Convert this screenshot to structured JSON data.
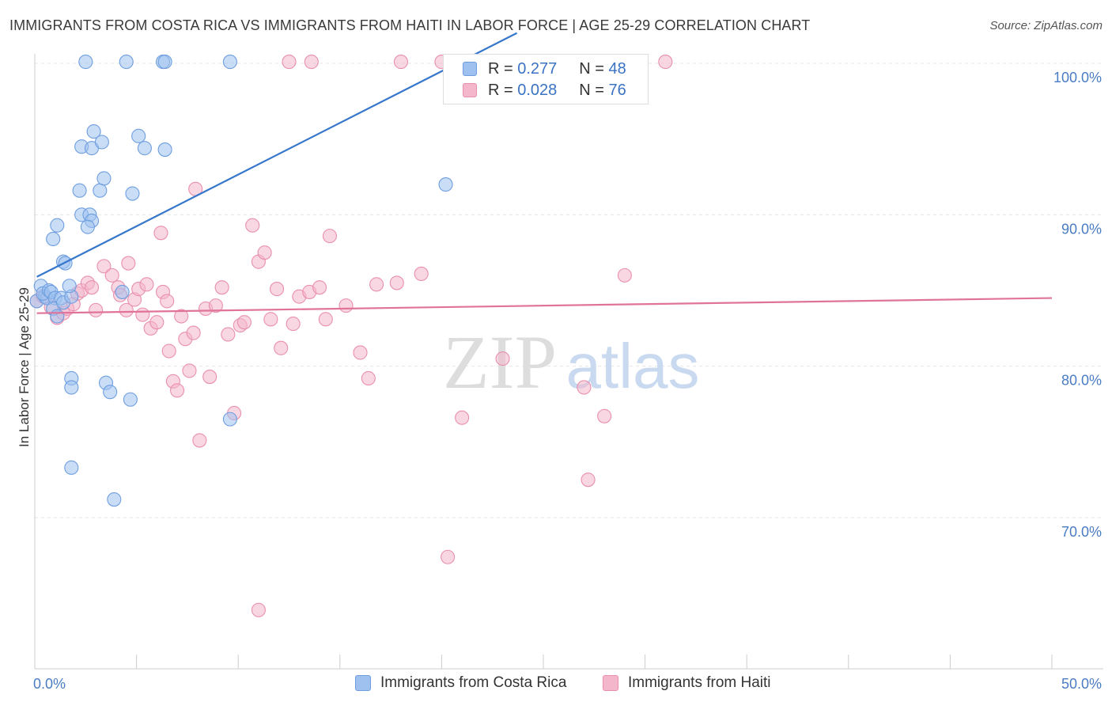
{
  "title": "IMMIGRANTS FROM COSTA RICA VS IMMIGRANTS FROM HAITI IN LABOR FORCE | AGE 25-29 CORRELATION CHART",
  "source": "Source: ZipAtlas.com",
  "watermark": {
    "zip": "ZIP",
    "atlas": "atlas"
  },
  "legend": {
    "r_label": "R =",
    "n_label": "N =",
    "rows": [
      {
        "r": "0.277",
        "n": "48",
        "color": "#9ec1ef"
      },
      {
        "r": "0.028",
        "n": "76",
        "color": "#f4b6cb"
      }
    ]
  },
  "colors": {
    "blue_fill": "#9ec1ef",
    "blue_stroke": "#6e9ee0",
    "blue_line": "#3677cc",
    "pink_fill": "#f4b6cb",
    "pink_stroke": "#e98fae",
    "pink_line": "#e0739a",
    "tick_label": "#4a7cc4",
    "grid": "#e6e6e6"
  },
  "chart_data": {
    "type": "scatter",
    "title": "IMMIGRANTS FROM COSTA RICA VS IMMIGRANTS FROM HAITI IN LABOR FORCE | AGE 25-29 CORRELATION CHART",
    "xlabel": "",
    "ylabel": "In Labor Force | Age 25-29",
    "xlim": [
      0,
      50
    ],
    "ylim": [
      60,
      102
    ],
    "x_tick_labels": [
      "0.0%",
      "50.0%"
    ],
    "y_ticks": [
      70,
      80,
      90,
      100
    ],
    "y_tick_labels": [
      "70.0%",
      "80.0%",
      "90.0%",
      "100.0%"
    ],
    "grid": true,
    "legend_position": "top-center",
    "series": [
      {
        "name": "Immigrants from Costa Rica",
        "color": "#9ec1ef",
        "trend": {
          "x": [
            0.1,
            23.7
          ],
          "y": [
            85.9,
            102.0
          ]
        },
        "points": [
          [
            0.1,
            84.3
          ],
          [
            0.3,
            85.3
          ],
          [
            0.5,
            84.6
          ],
          [
            0.6,
            84.5
          ],
          [
            0.4,
            84.8
          ],
          [
            0.7,
            85.0
          ],
          [
            0.8,
            84.9
          ],
          [
            1.0,
            84.5
          ],
          [
            0.9,
            83.8
          ],
          [
            1.1,
            83.3
          ],
          [
            1.3,
            84.5
          ],
          [
            1.4,
            84.2
          ],
          [
            1.8,
            84.6
          ],
          [
            1.7,
            85.3
          ],
          [
            1.4,
            86.9
          ],
          [
            1.5,
            86.8
          ],
          [
            0.9,
            88.4
          ],
          [
            1.1,
            89.3
          ],
          [
            2.3,
            90.0
          ],
          [
            2.7,
            90.0
          ],
          [
            2.8,
            89.6
          ],
          [
            2.6,
            89.2
          ],
          [
            2.2,
            91.6
          ],
          [
            3.2,
            91.6
          ],
          [
            3.4,
            92.4
          ],
          [
            2.3,
            94.5
          ],
          [
            2.8,
            94.4
          ],
          [
            3.3,
            94.8
          ],
          [
            2.9,
            95.5
          ],
          [
            4.8,
            91.4
          ],
          [
            5.1,
            95.2
          ],
          [
            5.4,
            94.4
          ],
          [
            6.4,
            94.3
          ],
          [
            2.5,
            100.1
          ],
          [
            4.5,
            100.1
          ],
          [
            6.3,
            100.1
          ],
          [
            6.4,
            100.1
          ],
          [
            9.6,
            100.1
          ],
          [
            20.2,
            92.0
          ],
          [
            1.8,
            79.2
          ],
          [
            1.8,
            78.6
          ],
          [
            3.5,
            78.9
          ],
          [
            3.7,
            78.3
          ],
          [
            4.7,
            77.8
          ],
          [
            9.6,
            76.5
          ],
          [
            1.8,
            73.3
          ],
          [
            3.9,
            71.2
          ],
          [
            4.3,
            84.9
          ]
        ]
      },
      {
        "name": "Immigrants from Haiti",
        "color": "#f4b6cb",
        "trend": {
          "x": [
            0.1,
            50.0
          ],
          "y": [
            83.5,
            84.5
          ]
        },
        "points": [
          [
            0.1,
            84.3
          ],
          [
            0.4,
            84.6
          ],
          [
            0.8,
            83.9
          ],
          [
            1.1,
            83.2
          ],
          [
            1.4,
            83.5
          ],
          [
            1.6,
            83.8
          ],
          [
            1.9,
            84.1
          ],
          [
            2.1,
            84.8
          ],
          [
            2.3,
            85.0
          ],
          [
            2.6,
            85.5
          ],
          [
            2.8,
            85.2
          ],
          [
            3.0,
            83.7
          ],
          [
            3.4,
            86.6
          ],
          [
            3.8,
            86.0
          ],
          [
            4.1,
            85.2
          ],
          [
            4.2,
            84.7
          ],
          [
            4.5,
            83.7
          ],
          [
            4.6,
            86.8
          ],
          [
            4.9,
            84.4
          ],
          [
            5.1,
            85.1
          ],
          [
            5.3,
            83.4
          ],
          [
            5.7,
            82.5
          ],
          [
            5.5,
            85.4
          ],
          [
            6.0,
            82.9
          ],
          [
            6.2,
            88.8
          ],
          [
            6.3,
            84.9
          ],
          [
            6.5,
            84.3
          ],
          [
            6.6,
            81.0
          ],
          [
            6.8,
            79.0
          ],
          [
            7.0,
            78.4
          ],
          [
            7.2,
            83.3
          ],
          [
            7.4,
            81.8
          ],
          [
            7.6,
            79.7
          ],
          [
            7.8,
            82.2
          ],
          [
            7.9,
            91.7
          ],
          [
            8.1,
            75.1
          ],
          [
            8.4,
            83.8
          ],
          [
            8.6,
            79.3
          ],
          [
            8.9,
            84.0
          ],
          [
            9.2,
            85.2
          ],
          [
            9.5,
            82.1
          ],
          [
            9.8,
            76.9
          ],
          [
            10.1,
            82.7
          ],
          [
            10.3,
            82.9
          ],
          [
            10.7,
            89.3
          ],
          [
            11.0,
            86.9
          ],
          [
            11.3,
            87.5
          ],
          [
            11.6,
            83.1
          ],
          [
            11.9,
            85.1
          ],
          [
            12.1,
            81.2
          ],
          [
            12.7,
            82.8
          ],
          [
            13.0,
            84.6
          ],
          [
            13.5,
            84.9
          ],
          [
            14.0,
            85.2
          ],
          [
            14.3,
            83.1
          ],
          [
            14.5,
            88.6
          ],
          [
            15.3,
            84.0
          ],
          [
            16.0,
            80.9
          ],
          [
            16.4,
            79.2
          ],
          [
            16.8,
            85.4
          ],
          [
            17.8,
            85.5
          ],
          [
            19.0,
            86.1
          ],
          [
            20.0,
            100.1
          ],
          [
            21.0,
            76.6
          ],
          [
            23.0,
            80.5
          ],
          [
            27.0,
            78.6
          ],
          [
            27.2,
            72.5
          ],
          [
            28.0,
            76.7
          ],
          [
            29.0,
            86.0
          ],
          [
            31.0,
            100.1
          ],
          [
            12.5,
            100.1
          ],
          [
            13.6,
            100.1
          ],
          [
            18.0,
            100.1
          ],
          [
            24.5,
            100.1
          ],
          [
            20.3,
            67.4
          ],
          [
            11.0,
            63.9
          ]
        ]
      }
    ]
  },
  "bottom_legend": [
    {
      "label": "Immigrants from Costa Rica",
      "color": "#9ec1ef"
    },
    {
      "label": "Immigrants from Haiti",
      "color": "#f4b6cb"
    }
  ]
}
